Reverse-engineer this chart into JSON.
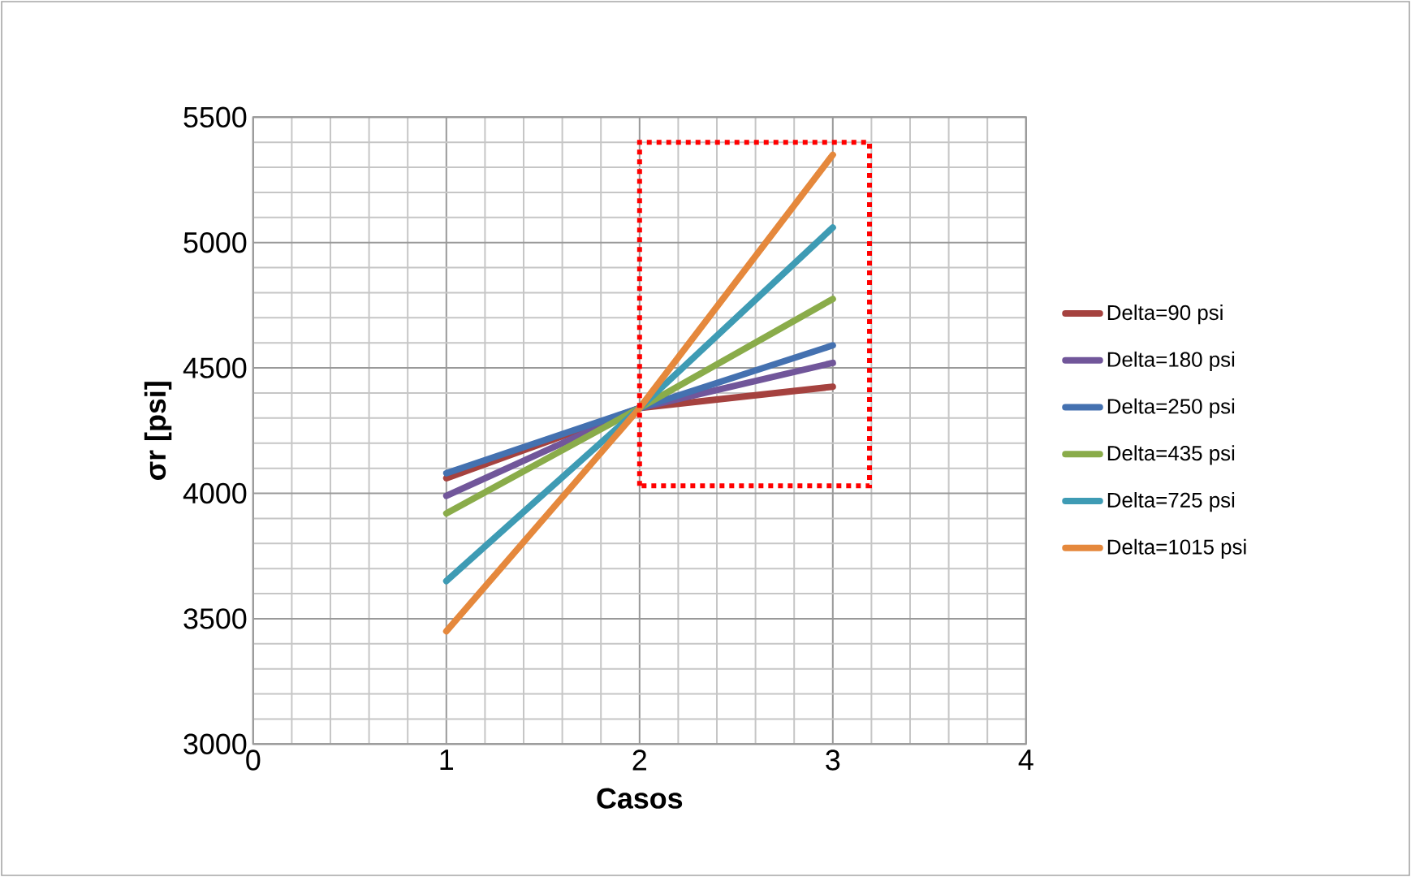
{
  "chart_data": {
    "type": "line",
    "xlabel": "Casos",
    "ylabel": "σr [psi]",
    "x": [
      1,
      2,
      3
    ],
    "series": [
      {
        "name": "Delta=90 psi",
        "color": "#a5423f",
        "values": [
          4060,
          4340,
          4425
        ]
      },
      {
        "name": "Delta=180 psi",
        "color": "#71569a",
        "values": [
          3990,
          4340,
          4520
        ]
      },
      {
        "name": "Delta=250 psi",
        "color": "#4471b0",
        "values": [
          4080,
          4340,
          4590
        ]
      },
      {
        "name": "Delta=435 psi",
        "color": "#8aac4a",
        "values": [
          3920,
          4340,
          4775
        ]
      },
      {
        "name": "Delta=725 psi",
        "color": "#3e9bb4",
        "values": [
          3650,
          4340,
          5060
        ]
      },
      {
        "name": "Delta=1015 psi",
        "color": "#e5883c",
        "values": [
          3450,
          4340,
          5350
        ]
      }
    ],
    "xlim": [
      0,
      4
    ],
    "xticks": [
      0,
      1,
      2,
      3,
      4
    ],
    "ylim": [
      3000,
      5500
    ],
    "yticks": [
      3000,
      3500,
      4000,
      4500,
      5000,
      5500
    ],
    "grid": true,
    "legend": "right",
    "marker": "none",
    "line_style": "solid"
  }
}
